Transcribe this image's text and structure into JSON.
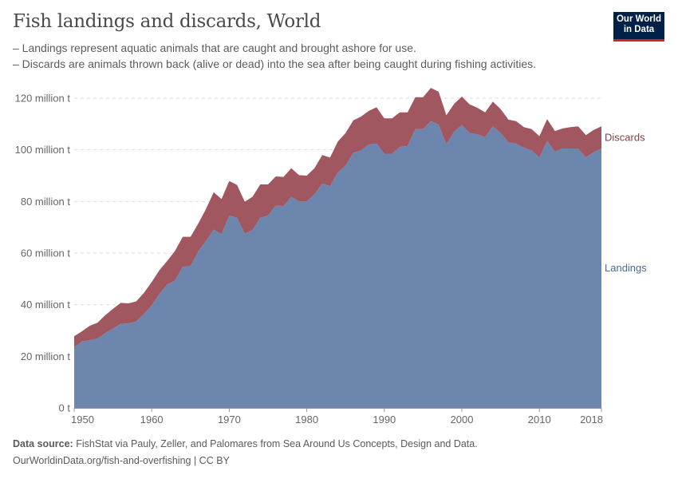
{
  "header": {
    "title": "Fish landings and discards, World",
    "subtitle_lines": [
      "– Landings represent aquatic animals that are caught and brought ashore for use.",
      "– Discards are animals thrown back (alive or dead) into the sea after being caught during fishing activities."
    ],
    "logo_text": "Our World in Data"
  },
  "footer": {
    "source_label": "Data source:",
    "source_text": "FishStat via Pauly, Zeller, and Palomares from Sea Around Us Concepts, Design and Data.",
    "link_text": "OurWorldinData.org/fish-and-overfishing | CC BY"
  },
  "chart_data": {
    "type": "area",
    "stacked": true,
    "title": "Fish landings and discards, World",
    "x": [
      1950,
      1951,
      1952,
      1953,
      1954,
      1955,
      1956,
      1957,
      1958,
      1959,
      1960,
      1961,
      1962,
      1963,
      1964,
      1965,
      1966,
      1967,
      1968,
      1969,
      1970,
      1971,
      1972,
      1973,
      1974,
      1975,
      1976,
      1977,
      1978,
      1979,
      1980,
      1981,
      1982,
      1983,
      1984,
      1985,
      1986,
      1987,
      1988,
      1989,
      1990,
      1991,
      1992,
      1993,
      1994,
      1995,
      1996,
      1997,
      1998,
      1999,
      2000,
      2001,
      2002,
      2003,
      2004,
      2005,
      2006,
      2007,
      2008,
      2009,
      2010,
      2011,
      2012,
      2013,
      2014,
      2015,
      2016,
      2017,
      2018
    ],
    "series": [
      {
        "name": "Landings",
        "color": "#6d86ae",
        "label_color": "#4b6a9b",
        "values": [
          23.5,
          25.7,
          26.3,
          26.9,
          29.0,
          30.7,
          32.6,
          32.8,
          33.5,
          36.4,
          39.7,
          44.1,
          47.9,
          49.3,
          54.7,
          55.0,
          60.6,
          64.7,
          69.1,
          67.3,
          74.5,
          73.7,
          67.5,
          68.9,
          73.7,
          74.5,
          78.4,
          78.2,
          81.8,
          80.0,
          80.0,
          82.8,
          86.9,
          85.9,
          91.2,
          93.9,
          98.8,
          99.8,
          102.1,
          102.4,
          98.5,
          98.5,
          101.1,
          101.5,
          108.0,
          108.0,
          111.1,
          109.8,
          102.1,
          107.0,
          109.6,
          106.5,
          106.0,
          104.9,
          109.1,
          106.5,
          102.9,
          102.4,
          100.8,
          99.8,
          97.0,
          103.4,
          99.3,
          100.5,
          100.5,
          100.5,
          97.0,
          99.1,
          100.5
        ]
      },
      {
        "name": "Discards",
        "color": "#a0575f",
        "label_color": "#8a3b44",
        "values": [
          4.3,
          4.0,
          5.5,
          6.1,
          6.9,
          7.7,
          8.1,
          7.7,
          7.8,
          8.2,
          9.1,
          9.3,
          9.1,
          11.5,
          11.6,
          11.3,
          10.8,
          12.4,
          14.5,
          13.6,
          13.4,
          12.7,
          12.4,
          12.9,
          12.9,
          12.1,
          11.3,
          11.3,
          11.1,
          10.2,
          10.0,
          10.1,
          11.1,
          11.1,
          12.0,
          12.6,
          12.6,
          13.1,
          13.0,
          14.1,
          13.7,
          13.7,
          13.4,
          13.0,
          12.4,
          12.4,
          12.9,
          12.7,
          11.3,
          10.8,
          11.0,
          11.1,
          10.3,
          9.6,
          9.6,
          9.3,
          8.8,
          8.7,
          8.0,
          8.2,
          8.3,
          8.5,
          8.0,
          7.8,
          8.3,
          8.6,
          8.7,
          8.6,
          8.6
        ]
      }
    ],
    "unit": "million t",
    "ylim": [
      0,
      120
    ],
    "y_ticks": [
      0,
      20,
      40,
      60,
      80,
      100,
      120
    ],
    "y_tick_labels": [
      "0 t",
      "20 million t",
      "40 million t",
      "60 million t",
      "80 million t",
      "100 million t",
      "120 million t"
    ],
    "x_ticks": [
      1950,
      1960,
      1970,
      1980,
      1990,
      2000,
      2010,
      2018
    ],
    "x_tick_labels": [
      "1950",
      "1960",
      "1970",
      "1980",
      "1990",
      "2000",
      "2010",
      "2018"
    ],
    "grid": "horizontal dashed",
    "legend": "inline-right"
  }
}
